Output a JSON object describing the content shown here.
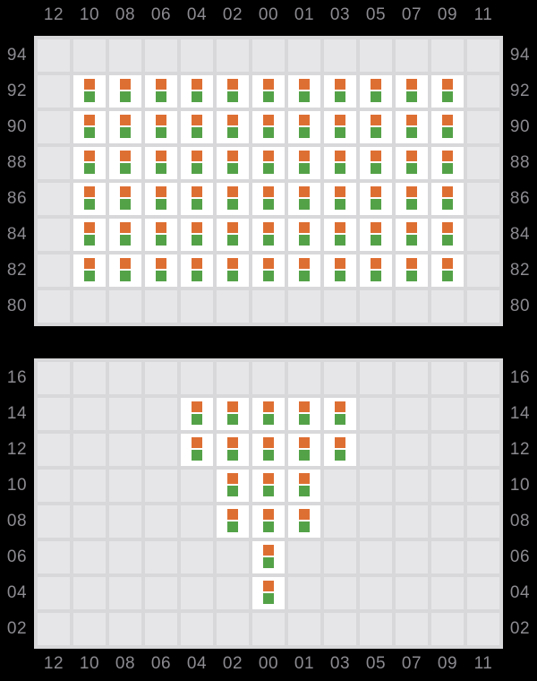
{
  "colors": {
    "background": "#000000",
    "grid_line": "#d8d8da",
    "cell_empty": "#e6e6e8",
    "cell_occupied": "#ffffff",
    "marker_top": "#de6f33",
    "marker_bottom": "#54a248",
    "axis_text": "#8b8b91"
  },
  "columns": [
    "12",
    "10",
    "08",
    "06",
    "04",
    "02",
    "00",
    "01",
    "03",
    "05",
    "07",
    "09",
    "11"
  ],
  "panels": [
    {
      "name": "upper",
      "rows": [
        "94",
        "92",
        "90",
        "88",
        "86",
        "84",
        "82",
        "80"
      ],
      "occupied": {
        "92": [
          "10",
          "08",
          "06",
          "04",
          "02",
          "00",
          "01",
          "03",
          "05",
          "07",
          "09"
        ],
        "90": [
          "10",
          "08",
          "06",
          "04",
          "02",
          "00",
          "01",
          "03",
          "05",
          "07",
          "09"
        ],
        "88": [
          "10",
          "08",
          "06",
          "04",
          "02",
          "00",
          "01",
          "03",
          "05",
          "07",
          "09"
        ],
        "86": [
          "10",
          "08",
          "06",
          "04",
          "02",
          "00",
          "01",
          "03",
          "05",
          "07",
          "09"
        ],
        "84": [
          "10",
          "08",
          "06",
          "04",
          "02",
          "00",
          "01",
          "03",
          "05",
          "07",
          "09"
        ],
        "82": [
          "10",
          "08",
          "06",
          "04",
          "02",
          "00",
          "01",
          "03",
          "05",
          "07",
          "09"
        ]
      }
    },
    {
      "name": "lower",
      "rows": [
        "16",
        "14",
        "12",
        "10",
        "08",
        "06",
        "04",
        "02"
      ],
      "occupied": {
        "14": [
          "04",
          "02",
          "00",
          "01",
          "03"
        ],
        "12": [
          "04",
          "02",
          "00",
          "01",
          "03"
        ],
        "10": [
          "02",
          "00",
          "01"
        ],
        "08": [
          "02",
          "00",
          "01"
        ],
        "06": [
          "00"
        ],
        "04": [
          "00"
        ]
      }
    }
  ]
}
